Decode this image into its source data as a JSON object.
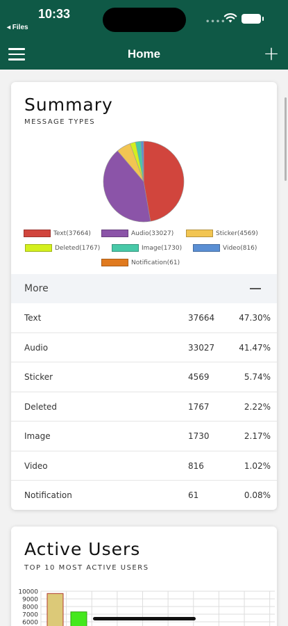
{
  "status_bar": {
    "time": "10:33",
    "back_label": "◂ Files",
    "signal": "••••"
  },
  "nav": {
    "title": "Home",
    "add_label": "+"
  },
  "colors": {
    "header": "#0f5946"
  },
  "summary": {
    "title": "Summary",
    "subtitle": "MESSAGE TYPES",
    "more_label": "More",
    "collapse_symbol": "—",
    "rows": [
      {
        "name": "Text",
        "count": "37664",
        "pct": "47.30%"
      },
      {
        "name": "Audio",
        "count": "33027",
        "pct": "41.47%"
      },
      {
        "name": "Sticker",
        "count": "4569",
        "pct": "5.74%"
      },
      {
        "name": "Deleted",
        "count": "1767",
        "pct": "2.22%"
      },
      {
        "name": "Image",
        "count": "1730",
        "pct": "2.17%"
      },
      {
        "name": "Video",
        "count": "816",
        "pct": "1.02%"
      },
      {
        "name": "Notification",
        "count": "61",
        "pct": "0.08%"
      }
    ]
  },
  "active_users": {
    "title": "Active Users",
    "subtitle": "TOP 10 MOST ACTIVE USERS"
  },
  "chart_data": [
    {
      "type": "pie",
      "title": "",
      "categories": [
        "Text",
        "Audio",
        "Sticker",
        "Deleted",
        "Image",
        "Video",
        "Notification"
      ],
      "values": [
        37664,
        33027,
        4569,
        1767,
        1730,
        816,
        61
      ],
      "legend": [
        "Text(37664)",
        "Audio(33027)",
        "Sticker(4569)",
        "Deleted(1767)",
        "Image(1730)",
        "Video(816)",
        "Notification(61)"
      ],
      "colors": [
        "#d1453d",
        "#8b54a8",
        "#f2c552",
        "#d4f01e",
        "#48c9a8",
        "#5a8fd4",
        "#e07a1f"
      ],
      "legend_placement": "bottom"
    },
    {
      "type": "bar",
      "title": "",
      "yticks": [
        "10000",
        "9000",
        "8000",
        "7000",
        "6000"
      ],
      "ylim": [
        6000,
        10000
      ],
      "values": [
        9700,
        7300
      ],
      "colors": [
        "#dcc978",
        "#44e81c"
      ],
      "grid": true
    }
  ]
}
